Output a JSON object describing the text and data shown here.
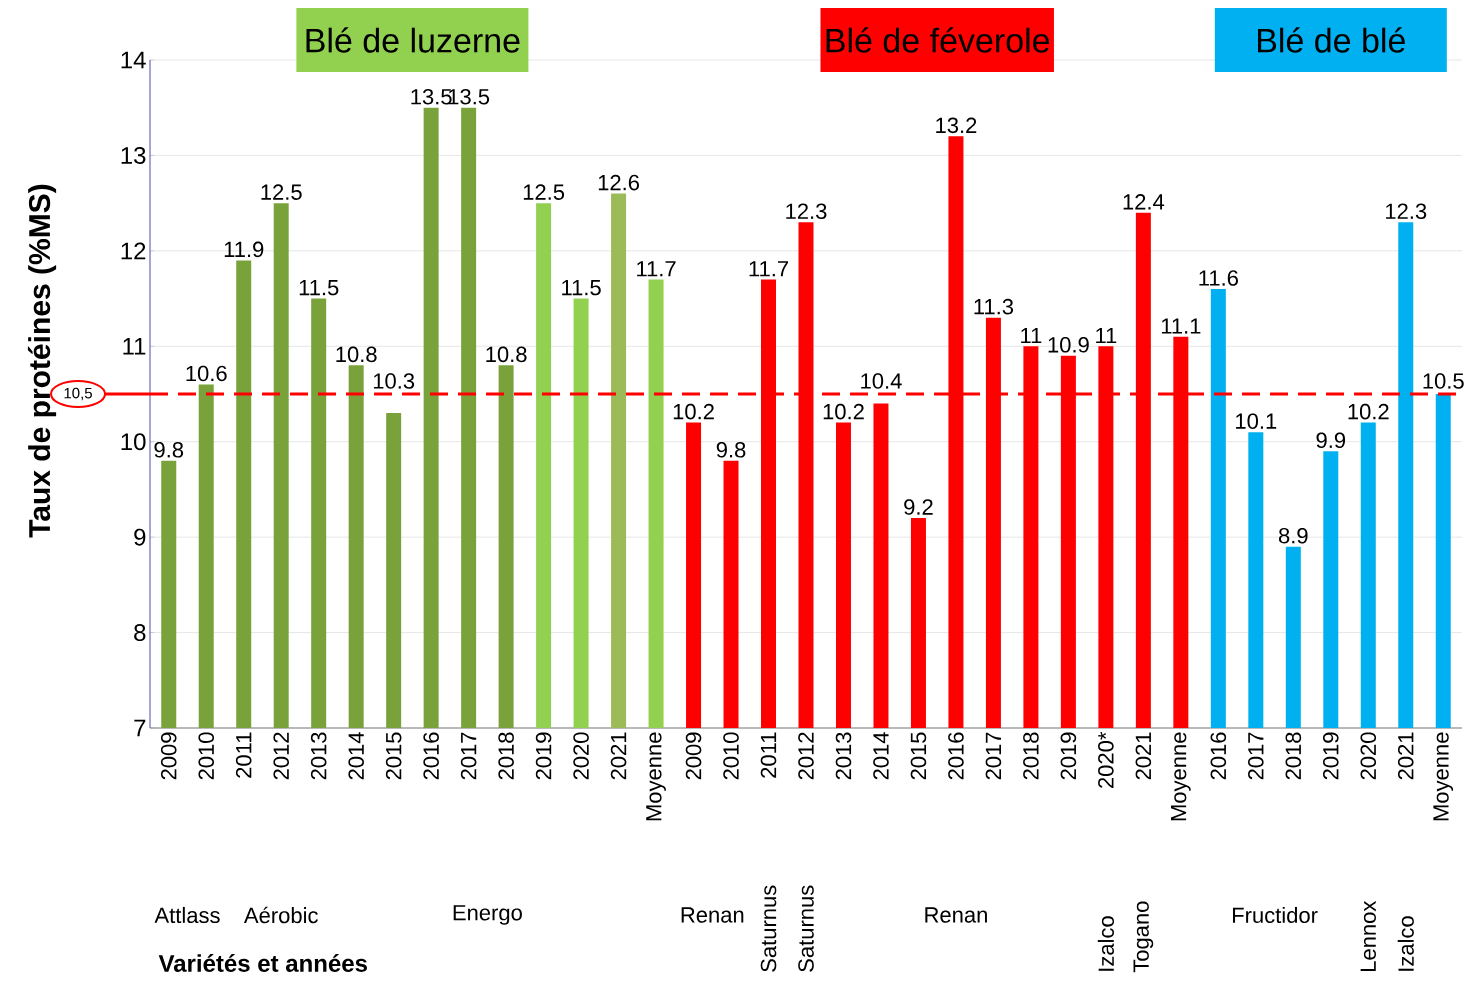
{
  "chart_data": {
    "type": "bar",
    "ylabel": "Taux de protéines (%MS)",
    "categories": [
      "2009",
      "2010",
      "2011",
      "2012",
      "2013",
      "2014",
      "2015",
      "2016",
      "2017",
      "2018",
      "2019",
      "2020",
      "2021",
      "Moyenne",
      "2009",
      "2010",
      "2011",
      "2012",
      "2013",
      "2014",
      "2015",
      "2016",
      "2017",
      "2018",
      "2019",
      "2020*",
      "2021",
      "Moyenne",
      "2016",
      "2017",
      "2018",
      "2019",
      "2020",
      "2021",
      "Moyenne"
    ],
    "series": [
      {
        "name": "Blé de luzerne",
        "color": "#92d050",
        "colors": [
          "#7aa23a",
          "#7aa23a",
          "#7aa23a",
          "#7aa23a",
          "#7aa23a",
          "#7aa23a",
          "#7aa23a",
          "#7aa23a",
          "#7aa23a",
          "#7aa23a",
          "#92d050",
          "#92d050",
          "#9bbb59",
          "#92d050",
          null,
          null,
          null,
          null,
          null,
          null,
          null,
          null,
          null,
          null,
          null,
          null,
          null,
          null,
          null,
          null,
          null,
          null,
          null,
          null,
          null
        ],
        "values": [
          9.8,
          10.6,
          11.9,
          12.5,
          11.5,
          10.8,
          10.3,
          13.5,
          13.5,
          10.8,
          12.5,
          11.5,
          12.6,
          11.7,
          null,
          null,
          null,
          null,
          null,
          null,
          null,
          null,
          null,
          null,
          null,
          null,
          null,
          null,
          null,
          null,
          null,
          null,
          null,
          null,
          null
        ]
      },
      {
        "name": "Blé de féverole",
        "color": "#ff0000",
        "values": [
          null,
          null,
          null,
          null,
          null,
          null,
          null,
          null,
          null,
          null,
          null,
          null,
          null,
          null,
          10.2,
          9.8,
          11.7,
          12.3,
          10.2,
          10.4,
          9.2,
          13.2,
          11.3,
          11,
          10.9,
          11,
          12.4,
          11.1,
          null,
          null,
          null,
          null,
          null,
          null,
          null
        ]
      },
      {
        "name": "Blé de blé",
        "color": "#00b0f0",
        "values": [
          null,
          null,
          null,
          null,
          null,
          null,
          null,
          null,
          null,
          null,
          null,
          null,
          null,
          null,
          null,
          null,
          null,
          null,
          null,
          null,
          null,
          null,
          null,
          null,
          null,
          null,
          null,
          null,
          11.6,
          10.1,
          8.9,
          9.9,
          10.2,
          12.3,
          10.5
        ]
      }
    ],
    "ylim": [
      7,
      14
    ],
    "yticks": [
      7,
      8,
      9,
      10,
      11,
      12,
      13,
      14
    ],
    "grid": "y",
    "data_labels": true,
    "legend": "top",
    "ref_lines": [
      {
        "axis": "y",
        "value": 10.5,
        "label": "10,5",
        "color": "#ff0000",
        "line_style": "dashed"
      }
    ],
    "annotations": [
      "Attlass",
      "Aérobic",
      "Energo",
      "Renan",
      "Saturnus",
      "Saturnus",
      "Renan",
      "Izalco",
      "Togano",
      "Fructidor",
      "Lennox",
      "Izalco",
      "Variétés et années"
    ]
  }
}
